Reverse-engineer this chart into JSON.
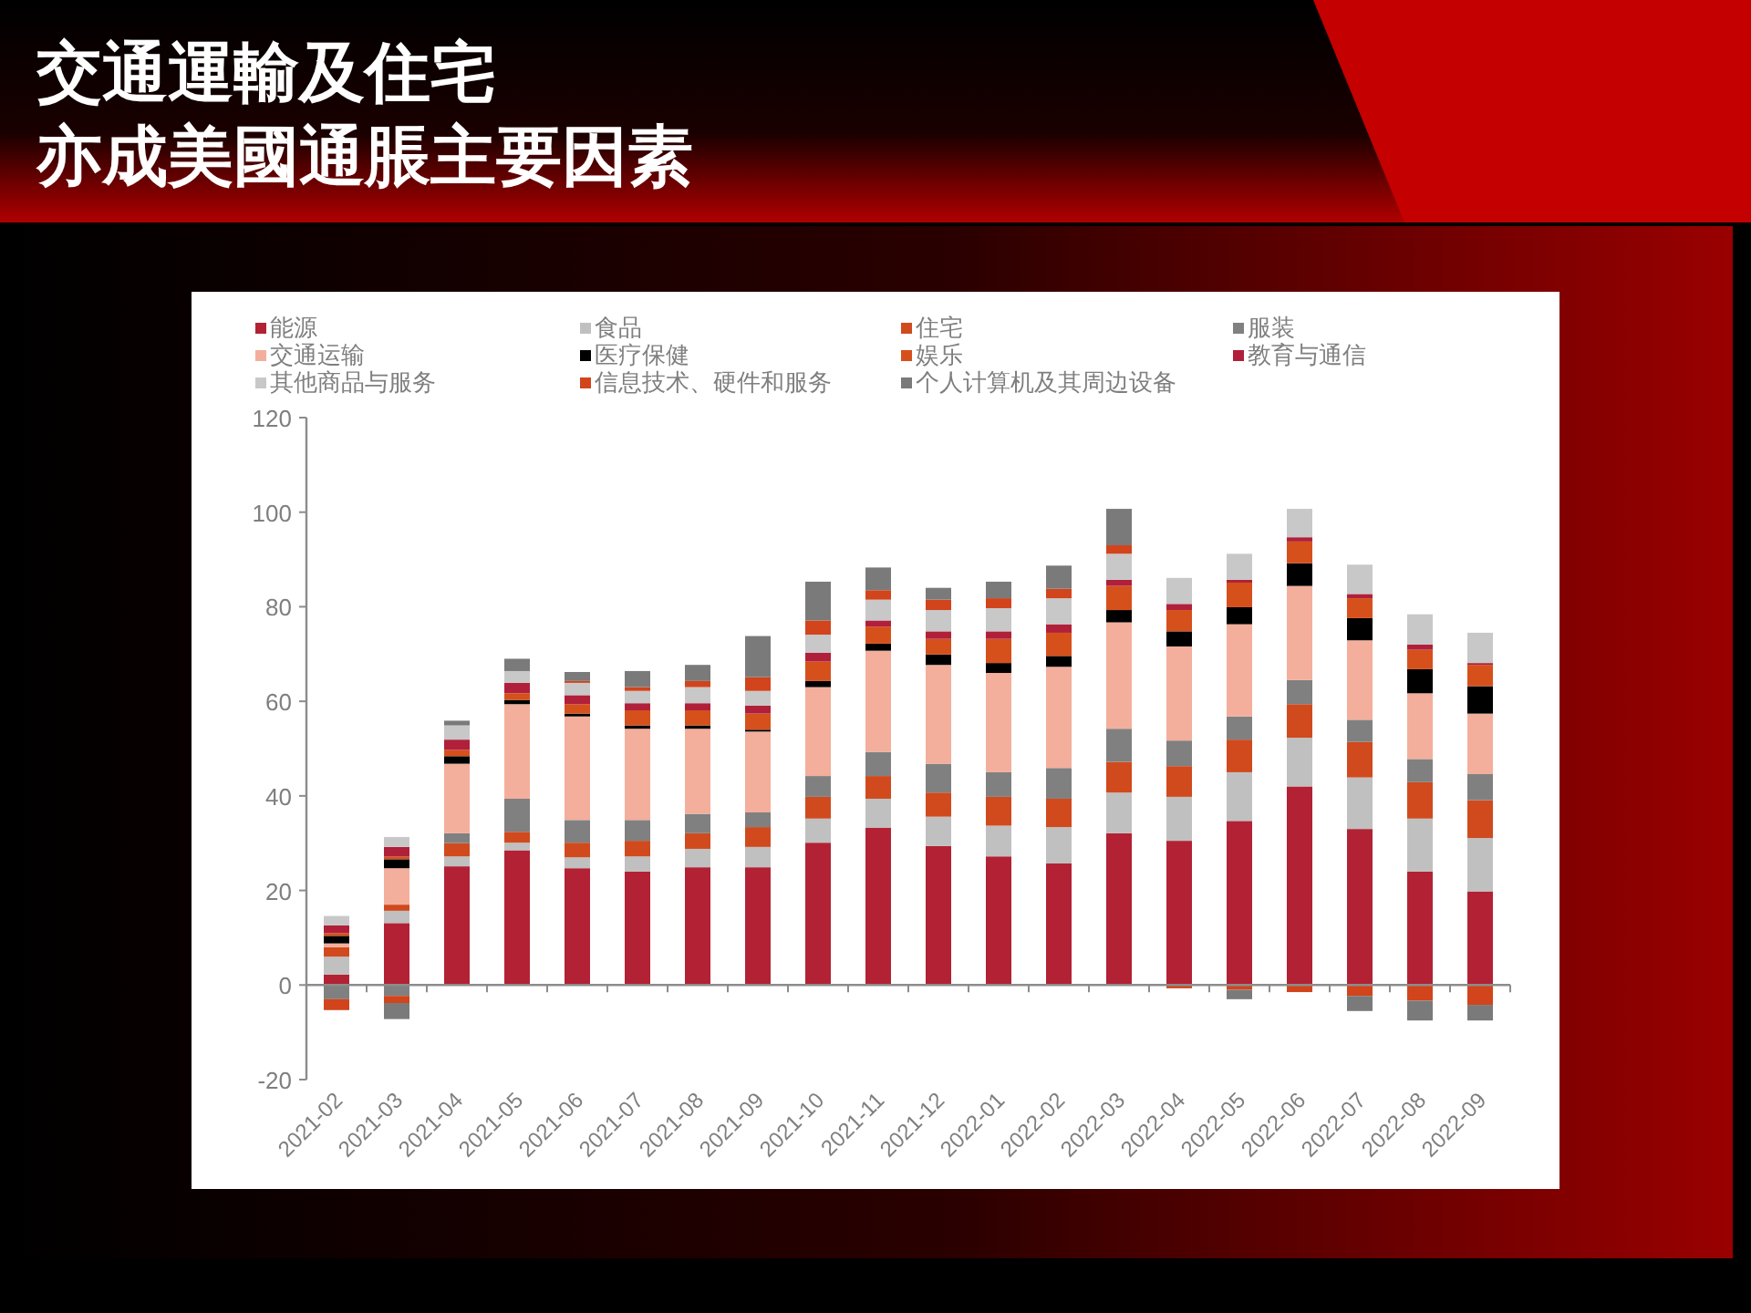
{
  "chart_data": {
    "type": "bar",
    "stacked": true,
    "title": "交通運輸及住宅",
    "subtitle": "亦成美國通脹主要因素",
    "categories": [
      "2021-02",
      "2021-03",
      "2021-04",
      "2021-05",
      "2021-06",
      "2021-07",
      "2021-08",
      "2021-09",
      "2021-10",
      "2021-11",
      "2021-12",
      "2022-01",
      "2022-02",
      "2022-03",
      "2022-04",
      "2022-05",
      "2022-06",
      "2022-07",
      "2022-08",
      "2022-09"
    ],
    "series": [
      {
        "name": "能源",
        "color": "#b22234",
        "values": [
          2.2,
          13.1,
          25.1,
          28.5,
          24.7,
          24,
          24.9,
          24.9,
          30.1,
          33.3,
          29.4,
          27.2,
          25.7,
          32.1,
          30.5,
          34.7,
          42,
          33,
          24,
          19.8
        ]
      },
      {
        "name": "食品",
        "color": "#c0c0c0",
        "values": [
          3.8,
          2.6,
          2.1,
          1.6,
          2.3,
          3.2,
          3.9,
          4.3,
          5.1,
          6.1,
          6.2,
          6.5,
          7.7,
          8.6,
          9.3,
          10.3,
          10.3,
          10.9,
          11.2,
          11.3
        ]
      },
      {
        "name": "住宅",
        "color": "#d04a1e",
        "values": [
          2,
          1.3,
          2.8,
          2.3,
          3.1,
          3.3,
          3.3,
          4.2,
          4.6,
          4.8,
          5.1,
          6.1,
          6,
          6.5,
          6.5,
          6.9,
          7.1,
          7.5,
          7.7,
          8
        ]
      },
      {
        "name": "服装",
        "color": "#808080",
        "values": [
          -3,
          -2.3,
          2.1,
          7,
          4.8,
          4.4,
          4.1,
          3.1,
          4.4,
          5.1,
          6.1,
          5.2,
          6.5,
          7,
          5.4,
          4.9,
          5.1,
          4.7,
          4.9,
          5.5
        ]
      },
      {
        "name": "交通运输",
        "color": "#f4ae9c",
        "values": [
          0.8,
          7.7,
          14.7,
          20,
          21.9,
          19.3,
          18,
          17.1,
          18.8,
          21.4,
          20.9,
          21,
          21.4,
          22.5,
          19.9,
          19.5,
          19.9,
          16.8,
          13.9,
          12.8
        ]
      },
      {
        "name": "医疗保健",
        "color": "#000000",
        "values": [
          1.6,
          1.9,
          1.6,
          0.9,
          0.6,
          0.7,
          0.7,
          0.4,
          1.3,
          1.5,
          2.2,
          2.1,
          2.3,
          2.6,
          3.2,
          3.6,
          4.8,
          4.7,
          5.1,
          5.8
        ]
      },
      {
        "name": "娱乐",
        "color": "#d6501c",
        "values": [
          0.6,
          0.6,
          1.3,
          1.4,
          2,
          3.2,
          3.2,
          3.4,
          4.1,
          3.6,
          3.3,
          5.1,
          4.9,
          5.1,
          4.5,
          5.2,
          4.6,
          4.2,
          4.1,
          4.5
        ]
      },
      {
        "name": "教育与通信",
        "color": "#b0203a",
        "values": [
          1.6,
          2,
          2.2,
          2.2,
          1.9,
          1.5,
          1.5,
          1.7,
          1.9,
          1.3,
          1.6,
          1.6,
          1.8,
          1.3,
          1.3,
          0.6,
          0.9,
          0.9,
          1.1,
          0.4
        ]
      },
      {
        "name": "其他商品与服务",
        "color": "#c8c8c8",
        "values": [
          2,
          2.1,
          3,
          2.5,
          2.6,
          2.6,
          3.4,
          3.1,
          3.8,
          4.4,
          4.5,
          4.9,
          5.5,
          5.5,
          5.5,
          5.5,
          6,
          6.2,
          6.4,
          6.4
        ]
      },
      {
        "name": "信息技术、硬件和服务",
        "color": "#d2441c",
        "values": [
          -2.3,
          -1.5,
          null,
          null,
          0.4,
          0.8,
          1.3,
          2.9,
          3,
          2,
          2.2,
          2.1,
          2,
          1.8,
          -0.7,
          -1,
          -1.5,
          -2.3,
          -3.3,
          -4.2
        ]
      },
      {
        "name": "个人计算机及其周边设备",
        "color": "#7a7a7a",
        "values": [
          null,
          -3.4,
          1,
          2.6,
          1.9,
          3.4,
          3.4,
          8.7,
          8.2,
          4.8,
          2.5,
          3.5,
          4.9,
          7.7,
          null,
          -2,
          null,
          -3.2,
          -4.2,
          -3.3
        ]
      }
    ],
    "ylim": [
      -20,
      120
    ],
    "yticks": [
      -20,
      0,
      20,
      40,
      60,
      80,
      100,
      120
    ],
    "legend": "top"
  }
}
